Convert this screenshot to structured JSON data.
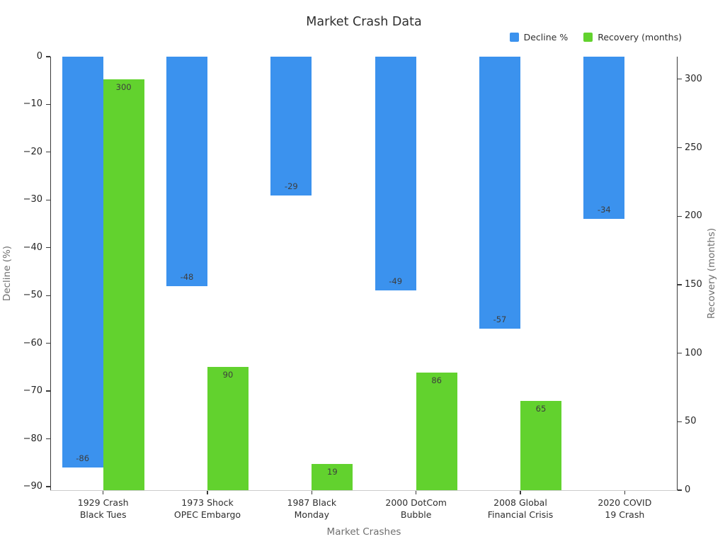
{
  "chart_data": {
    "type": "bar",
    "title": "Market Crash Data",
    "background": "#ffffff",
    "grid": false,
    "legend_position": "top-right",
    "categories": [
      [
        "1929 Crash",
        "Black Tues"
      ],
      [
        "1973 Shock",
        "OPEC Embargo"
      ],
      [
        "1987 Black",
        "Monday"
      ],
      [
        "2000 DotCom",
        "Bubble"
      ],
      [
        "2008 Global",
        "Financial Crisis"
      ],
      [
        "2020 COVID",
        "19 Crash"
      ]
    ],
    "series": [
      {
        "name": "Decline %",
        "axis": "left",
        "color": "#3b92ee",
        "values": [
          -86,
          -48,
          -29,
          -49,
          -57,
          -34
        ],
        "labels": [
          "-86",
          "-48",
          "-29",
          "-49",
          "-57",
          "-34"
        ]
      },
      {
        "name": "Recovery (months)",
        "axis": "right",
        "color": "#62d22e",
        "values": [
          300,
          90,
          19,
          86,
          65,
          0
        ],
        "labels": [
          "300",
          "90",
          "19",
          "86",
          "65",
          ""
        ]
      }
    ],
    "axes": {
      "x": {
        "title": "Market Crashes"
      },
      "left": {
        "title": "Decline (%)",
        "ylim": [
          -90.75,
          0
        ],
        "ticks": [
          {
            "v": 0,
            "label": "0"
          },
          {
            "v": 10,
            "label": "−10"
          },
          {
            "v": 20,
            "label": "−20"
          },
          {
            "v": 30,
            "label": "−30"
          },
          {
            "v": 40,
            "label": "−40"
          },
          {
            "v": 50,
            "label": "−50"
          },
          {
            "v": 60,
            "label": "−60"
          },
          {
            "v": 70,
            "label": "−70"
          },
          {
            "v": 80,
            "label": "−80"
          },
          {
            "v": 90,
            "label": "−90"
          }
        ]
      },
      "right": {
        "title": "Recovery (months)",
        "ylim": [
          0,
          316.5
        ],
        "ticks": [
          {
            "v": 0,
            "label": "0"
          },
          {
            "v": 50,
            "label": "50"
          },
          {
            "v": 100,
            "label": "100"
          },
          {
            "v": 150,
            "label": "150"
          },
          {
            "v": 200,
            "label": "200"
          },
          {
            "v": 250,
            "label": "250"
          },
          {
            "v": 300,
            "label": "300"
          }
        ]
      }
    },
    "spine_colors": {
      "dark": "#3a3a3a",
      "light": "#cccccc"
    }
  }
}
